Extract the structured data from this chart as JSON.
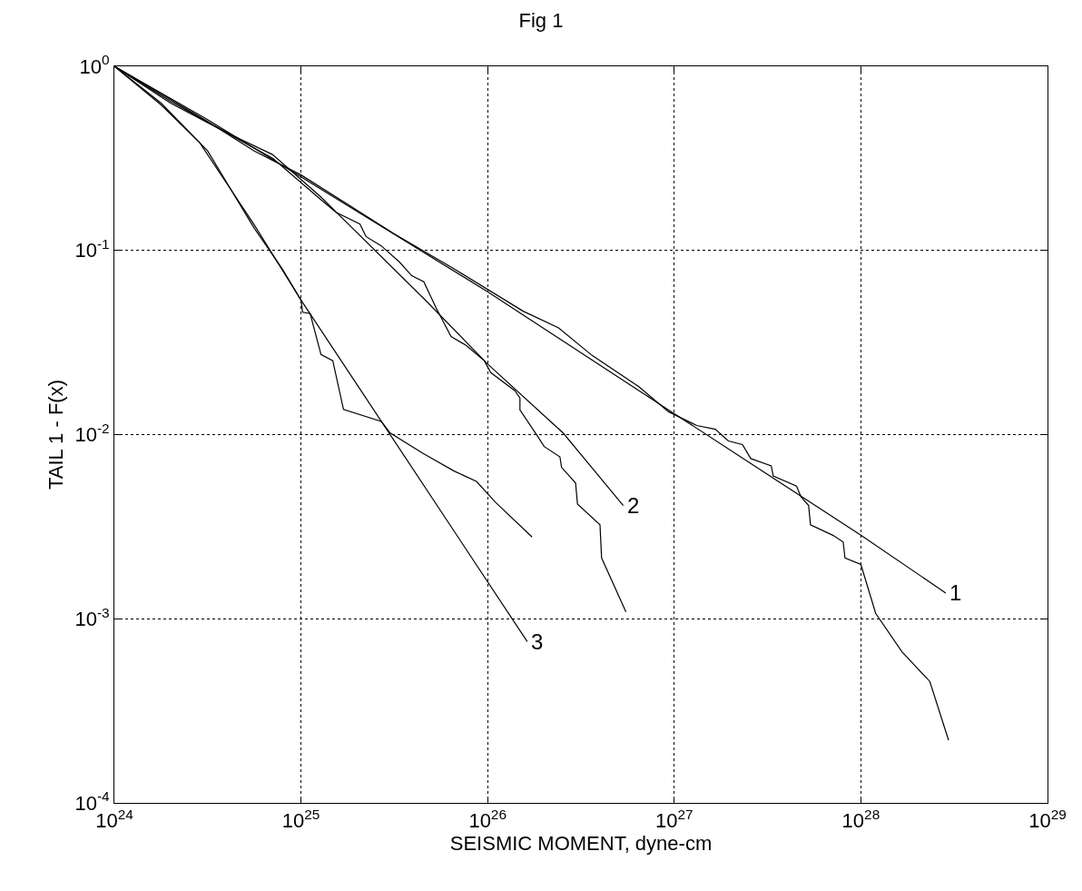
{
  "chart_data": {
    "type": "line",
    "title": "Fig 1",
    "xlabel": "SEISMIC MOMENT, dyne-cm",
    "ylabel": "TAIL 1 - F(x)",
    "log": "xy",
    "grid": true,
    "marker": "none",
    "line_style": "solid",
    "xlim": [
      1e+24,
      1e+29
    ],
    "ylim": [
      0.0001,
      1
    ],
    "xticks": [
      {
        "value": 1e+24,
        "label": "10$^{24}$"
      },
      {
        "value": 1e+25,
        "label": "10$^{25}$"
      },
      {
        "value": 1e+26,
        "label": "10$^{26}$"
      },
      {
        "value": 1e+27,
        "label": "10$^{27}$"
      },
      {
        "value": 1e+28,
        "label": "10$^{28}$"
      },
      {
        "value": 1e+29,
        "label": "10$^{29}$"
      }
    ],
    "yticks": [
      {
        "value": 0.0001,
        "label": "10$^{-4}$"
      },
      {
        "value": 0.001,
        "label": "10$^{-3}$"
      },
      {
        "value": 0.01,
        "label": "10$^{-2}$"
      },
      {
        "value": 0.1,
        "label": "10$^{-1}$"
      },
      {
        "value": 1,
        "label": "10$^{0}$"
      }
    ],
    "series": [
      {
        "color": "#000000",
        "x": [
          1e+24,
          3.16e+24,
          1e+25,
          1e+26,
          1e+27,
          1e+28,
          2.85e+28
        ],
        "values": [
          1,
          0.513,
          0.251,
          0.0597,
          0.013,
          0.00284,
          0.00138
        ]
      },
      {
        "color": "#000000",
        "x": [
          1e+24,
          1.78e+24,
          3.16e+24,
          5.62e+24,
          1e+25,
          1.78e+25,
          3.16e+25,
          6.61e+25,
          1.55e+26,
          2.4e+26,
          3.63e+26,
          6.46e+26,
          9.33e+26,
          1.32e+27,
          1.66e+27,
          1.95e+27,
          2.32e+27,
          2.57e+27,
          3.31e+27,
          3.39e+27,
          4.52e+27,
          4.79e+27,
          5.25e+27,
          5.37e+27,
          7.08e+27,
          8.04e+27,
          8.22e+27,
          1e+28,
          1.2e+28,
          1.66e+28,
          2.34e+28,
          2.95e+28
        ],
        "values": [
          1,
          0.708,
          0.501,
          0.347,
          0.257,
          0.178,
          0.123,
          0.0794,
          0.0468,
          0.038,
          0.0269,
          0.0182,
          0.0133,
          0.0112,
          0.0107,
          0.00923,
          0.00883,
          0.00741,
          0.00676,
          0.00596,
          0.00525,
          0.00457,
          0.00412,
          0.00324,
          0.00284,
          0.00261,
          0.00214,
          0.00197,
          0.00107,
          0.000661,
          0.000457,
          0.000219
        ]
      },
      {
        "color": "#000000",
        "x": [
          1e+24,
          2e+24,
          3.98e+24,
          7.03e+24,
          1.28e+25,
          4.72e+25,
          9.95e+25,
          2.54e+26,
          5.33e+26
        ],
        "values": [
          1,
          0.631,
          0.437,
          0.332,
          0.195,
          0.0528,
          0.0243,
          0.0102,
          0.00412
        ]
      },
      {
        "color": "#000000",
        "x": [
          1e+24,
          2e+24,
          3.98e+24,
          7.08e+24,
          1.26e+25,
          1.54e+25,
          2.07e+25,
          2.23e+25,
          2.69e+25,
          3.37e+25,
          3.92e+25,
          4.55e+25,
          5.28e+25,
          6.37e+25,
          7.67e+25,
          9.59e+25,
          1.04e+26,
          1.4e+26,
          1.49e+26,
          1.49e+26,
          1.85e+26,
          2.01e+26,
          2.44e+26,
          2.49e+26,
          2.96e+26,
          3.03e+26,
          4e+26,
          4.08e+26,
          5.51e+26
        ],
        "values": [
          1,
          0.646,
          0.437,
          0.316,
          0.191,
          0.161,
          0.139,
          0.119,
          0.106,
          0.0865,
          0.0729,
          0.0676,
          0.049,
          0.0341,
          0.0305,
          0.0252,
          0.0217,
          0.0173,
          0.0158,
          0.0136,
          0.00982,
          0.00861,
          0.00757,
          0.00664,
          0.00546,
          0.0042,
          0.00324,
          0.00214,
          0.00109
        ]
      },
      {
        "color": "#000000",
        "x": [
          1e+24,
          1.78e+24,
          2.86e+24,
          5.61e+24,
          1e+25,
          1.63e+26
        ],
        "values": [
          1,
          0.617,
          0.386,
          0.138,
          0.0538,
          0.000752
        ]
      },
      {
        "color": "#000000",
        "x": [
          1e+24,
          1.78e+24,
          3.16e+24,
          5.62e+24,
          7.94e+24,
          1e+25,
          1.02e+25,
          1.12e+25,
          1.28e+25,
          1.48e+25,
          1.69e+25,
          2.69e+25,
          3.01e+25,
          4.47e+25,
          6.61e+25,
          8.71e+25,
          1.1e+26,
          1.73e+26
        ],
        "values": [
          1,
          0.631,
          0.347,
          0.132,
          0.0794,
          0.0537,
          0.0462,
          0.0454,
          0.0272,
          0.0252,
          0.0137,
          0.0118,
          0.0102,
          0.00794,
          0.00634,
          0.00557,
          0.0043,
          0.00278
        ]
      }
    ],
    "annotations": [
      {
        "text": "1",
        "x": 2.85e+28,
        "y": 0.00138
      },
      {
        "text": "2",
        "x": 5.33e+26,
        "y": 0.00412
      },
      {
        "text": "3",
        "x": 1.63e+26,
        "y": 0.000752
      }
    ]
  }
}
